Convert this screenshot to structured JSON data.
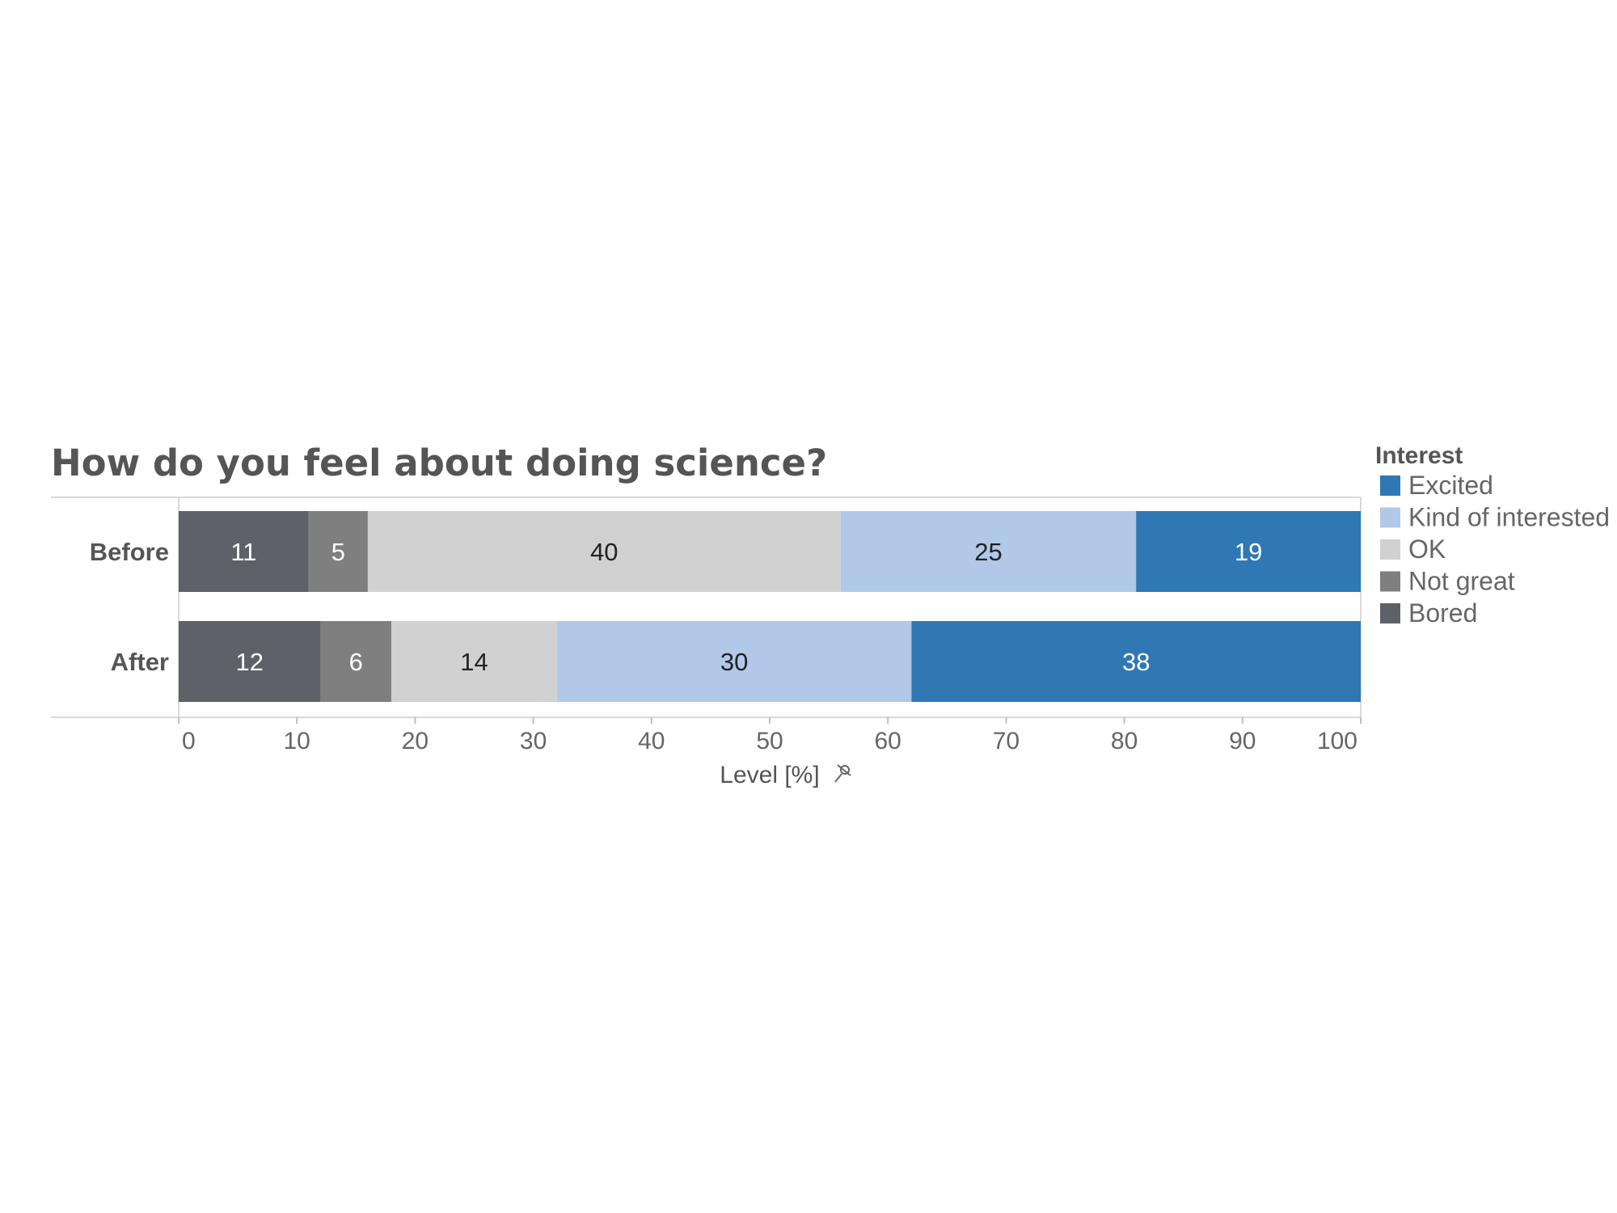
{
  "chart_data": {
    "type": "bar",
    "orientation": "horizontal",
    "stacked": true,
    "title": "How do you feel about doing science?",
    "xlabel": "Level [%]",
    "xlim": [
      0,
      100
    ],
    "xticks": [
      0,
      10,
      20,
      30,
      40,
      50,
      60,
      70,
      80,
      90,
      100
    ],
    "categories": [
      "Before",
      "After"
    ],
    "legend_title": "Interest",
    "legend_position": "right",
    "series": [
      {
        "name": "Bored",
        "color": "#5f6168",
        "label_color": "#ffffff",
        "values": [
          11,
          12
        ]
      },
      {
        "name": "Not great",
        "color": "#7f7f7f",
        "label_color": "#ffffff",
        "values": [
          5,
          6
        ]
      },
      {
        "name": "OK",
        "color": "#d1d1d1",
        "label_color": "#222222",
        "values": [
          40,
          14
        ]
      },
      {
        "name": "Kind of interested",
        "color": "#b1c8e8",
        "label_color": "#222222",
        "values": [
          25,
          30
        ]
      },
      {
        "name": "Excited",
        "color": "#2f78b4",
        "label_color": "#ffffff",
        "values": [
          19,
          38
        ]
      }
    ],
    "legend_order": [
      "Excited",
      "Kind of interested",
      "OK",
      "Not great",
      "Bored"
    ],
    "axis_icon": "pin-icon"
  }
}
